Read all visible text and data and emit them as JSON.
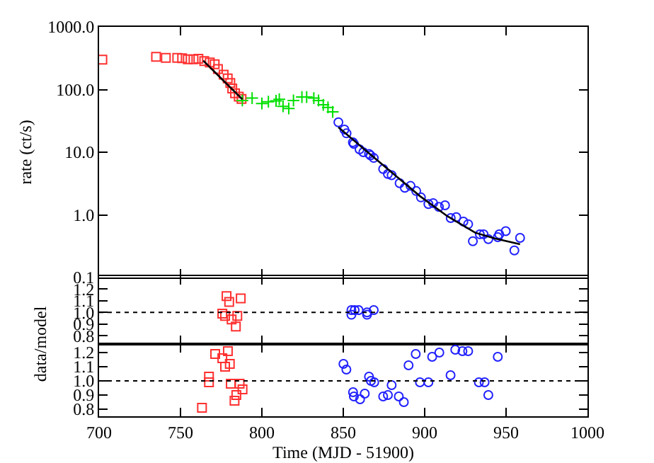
{
  "chart_data": [
    {
      "type": "scatter",
      "ylabel": "rate (ct/s)",
      "log": true,
      "xlim": [
        700,
        1000
      ],
      "xticks": [
        700,
        750,
        800,
        850,
        900,
        950,
        1000
      ],
      "ylim": [
        0.1,
        1000
      ],
      "yticks": [
        0.1,
        {
          "value": 1,
          "label": "1.0"
        },
        {
          "value": 10,
          "label": "10.0"
        },
        {
          "value": 100,
          "label": "100.0"
        },
        {
          "value": 1000,
          "label": "1000.0"
        }
      ],
      "tick_labels": "y",
      "grid": false,
      "series": [
        {
          "type": "scatter",
          "marker": "square",
          "color": "#ff3030",
          "x": [
            702,
            735,
            741,
            748,
            751,
            754.5,
            758,
            761,
            764.6,
            768,
            771,
            773,
            776.5,
            779,
            780.6,
            781.8,
            783.5,
            785.8,
            787.5
          ],
          "values": [
            300,
            333,
            321,
            321,
            316,
            305,
            305,
            310,
            285,
            270,
            253,
            213,
            173,
            151,
            127,
            104,
            87,
            77,
            71
          ]
        },
        {
          "type": "scatter",
          "marker": "cross",
          "color": "#00e000",
          "x": [
            788,
            794,
            800,
            804,
            808.7,
            810.7,
            813,
            816.5,
            819.4,
            824.6,
            827.5,
            831.9,
            834.8,
            837.7,
            840.6,
            843.5
          ],
          "values": [
            67,
            73,
            60,
            64,
            66,
            70,
            54,
            50,
            67,
            76,
            76,
            73,
            67,
            57,
            52,
            44
          ]
        },
        {
          "type": "scatter",
          "marker": "circle",
          "color": "#2020ff",
          "x": [
            847,
            850.7,
            852,
            855.9,
            856.5,
            860,
            862.3,
            865.8,
            866.7,
            868.7,
            874.5,
            877.4,
            879.7,
            884.6,
            887.8,
            891.3,
            894.8,
            897.7,
            902.3,
            905.2,
            908.7,
            912.5,
            916,
            919.4,
            923.8,
            926.7,
            929.6,
            933.9,
            936.2,
            939.1,
            944.9,
            945.8,
            949.8,
            955.1,
            958.6
          ],
          "values": [
            30,
            23,
            20,
            14.4,
            13.6,
            11.1,
            10,
            9.4,
            8.9,
            8.1,
            5.4,
            4.5,
            4.3,
            3.2,
            2.7,
            2.9,
            2.4,
            1.9,
            1.49,
            1.54,
            1.34,
            1.42,
            0.89,
            0.92,
            0.78,
            0.71,
            0.38,
            0.49,
            0.49,
            0.41,
            0.44,
            0.49,
            0.55,
            0.27,
            0.43
          ]
        },
        {
          "type": "line",
          "marker": "none",
          "line_style": "solid",
          "color": "#000000",
          "x": [
            764,
            776,
            788
          ],
          "values": [
            290,
            142,
            70
          ]
        },
        {
          "type": "line",
          "marker": "none",
          "line_style": "solid",
          "color": "#000000",
          "x": [
            847,
            865,
            880,
            897,
            914,
            931,
            943,
            958.6
          ],
          "values": [
            25,
            10,
            4.7,
            2.0,
            0.95,
            0.52,
            0.42,
            0.34
          ]
        }
      ]
    },
    {
      "type": "scatter",
      "xlim": [
        700,
        1000
      ],
      "xticks": [
        700,
        750,
        800,
        850,
        900,
        950,
        1000
      ],
      "ylim": [
        0.73,
        1.31
      ],
      "yticks": [
        0.8,
        0.9,
        {
          "value": 1,
          "label": "1.0"
        },
        1.1,
        1.2
      ],
      "tick_labels": "y",
      "grid": false,
      "ref_lines": [
        {
          "axis": "y",
          "value": 1,
          "color": "#000000",
          "line_style": "dotted"
        }
      ],
      "series": [
        {
          "type": "scatter",
          "marker": "square",
          "color": "#ff3030",
          "x": [
            778.3,
            779.9,
            775.7,
            777.4,
            781.4,
            784.9,
            784,
            787
          ],
          "values": [
            1.14,
            1.09,
            0.99,
            0.97,
            0.94,
            0.97,
            0.88,
            1.12
          ]
        },
        {
          "type": "scatter",
          "marker": "circle",
          "color": "#2020ff",
          "x": [
            855,
            855,
            857,
            859.4,
            864.6,
            864.6,
            868.7
          ],
          "values": [
            1.02,
            0.98,
            1.02,
            1.02,
            1.0,
            0.98,
            1.02
          ]
        }
      ]
    },
    {
      "type": "scatter",
      "xlabel": "Time (MJD - 51900)",
      "ylabel": "data/model",
      "xlim": [
        700,
        1000
      ],
      "xticks": [
        700,
        750,
        800,
        850,
        900,
        950,
        1000
      ],
      "ylim": [
        0.75,
        1.26
      ],
      "yticks": [
        0.8,
        0.9,
        {
          "value": 1,
          "label": "1.0"
        },
        1.1,
        1.2
      ],
      "grid": false,
      "ref_lines": [
        {
          "axis": "y",
          "value": 1,
          "color": "#000000",
          "line_style": "dotted"
        }
      ],
      "series": [
        {
          "type": "scatter",
          "marker": "square",
          "color": "#ff3030",
          "x": [
            763.2,
            767.5,
            767.5,
            771.3,
            775.7,
            777.4,
            779.1,
            780.3,
            780.9,
            783.2,
            784.3,
            786.3,
            788.1
          ],
          "values": [
            0.81,
            1.03,
            0.99,
            1.19,
            1.16,
            1.1,
            1.21,
            1.12,
            0.98,
            0.86,
            0.9,
            0.98,
            0.94
          ]
        },
        {
          "type": "scatter",
          "marker": "circle",
          "color": "#2020ff",
          "x": [
            850.1,
            851.9,
            856,
            856.5,
            860.3,
            863.2,
            865.8,
            867,
            869,
            874.5,
            877.4,
            879.7,
            884.1,
            887.2,
            890.1,
            894.5,
            897.1,
            902.3,
            904.6,
            909,
            915.9,
            918.8,
            923.2,
            926.7,
            933.3,
            936.8,
            939.1,
            944.9
          ],
          "values": [
            1.12,
            1.08,
            0.92,
            0.89,
            0.87,
            0.91,
            1.03,
            1.0,
            0.99,
            0.89,
            0.9,
            0.97,
            0.89,
            0.85,
            1.11,
            1.19,
            0.99,
            0.99,
            1.17,
            1.2,
            1.04,
            1.22,
            1.21,
            1.21,
            0.99,
            0.99,
            0.9,
            1.17
          ]
        }
      ]
    }
  ]
}
